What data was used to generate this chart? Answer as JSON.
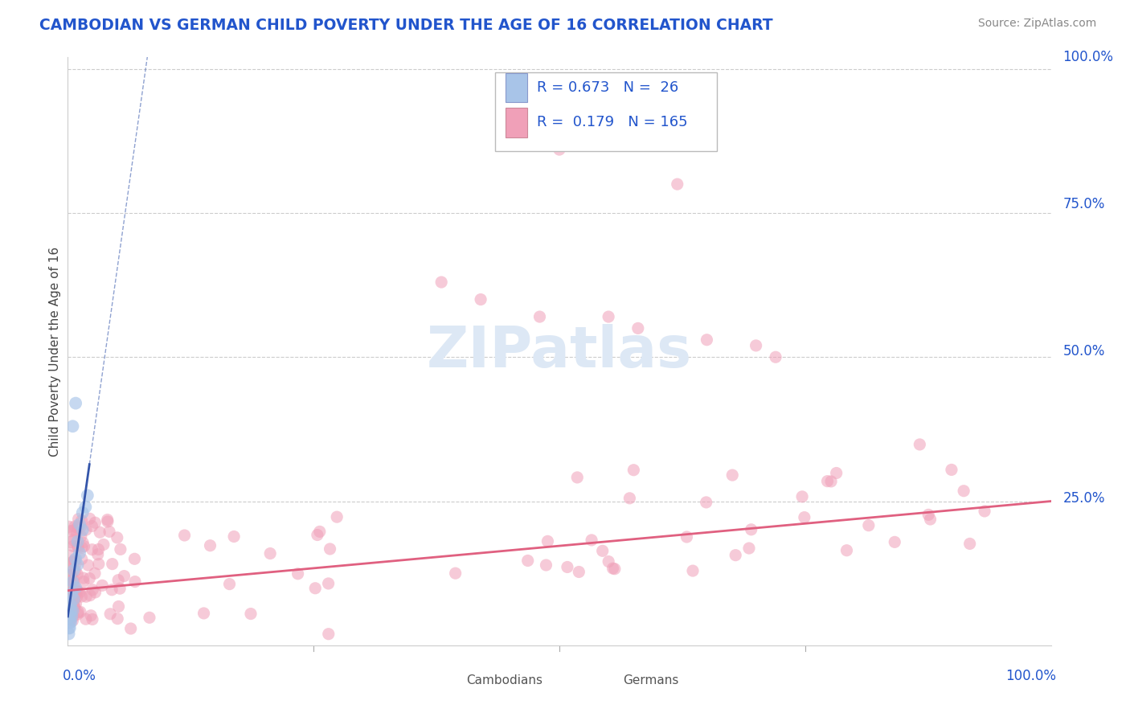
{
  "title": "CAMBODIAN VS GERMAN CHILD POVERTY UNDER THE AGE OF 16 CORRELATION CHART",
  "source": "Source: ZipAtlas.com",
  "ylabel": "Child Poverty Under the Age of 16",
  "legend_cambodian_R": "0.673",
  "legend_cambodian_N": "26",
  "legend_german_R": "0.179",
  "legend_german_N": "165",
  "cambodian_color": "#a8c4e8",
  "german_color": "#f0a0b8",
  "cambodian_line_color": "#3355aa",
  "german_line_color": "#e06080",
  "title_color": "#2255cc",
  "axis_label_color": "#2255cc",
  "watermark_color": "#dde8f5",
  "background_color": "#ffffff",
  "grid_color": "#cccccc",
  "source_color": "#888888",
  "bottom_legend_color": "#555555"
}
